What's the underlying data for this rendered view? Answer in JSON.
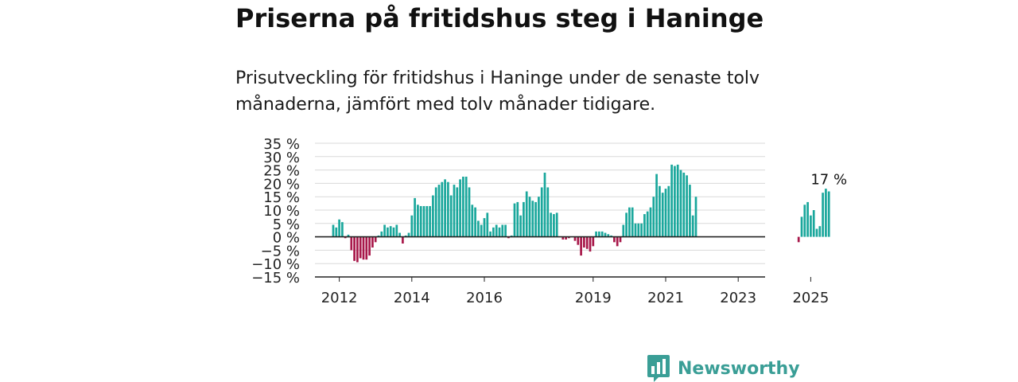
{
  "title": "Priserna på fritidshus steg i Haninge",
  "subtitle": "Prisutveckling för fritidshus i Haninge under de senaste tolv månaderna, jämfört med tolv månader tidigare.",
  "brand": {
    "name": "Newsworthy",
    "logo_icon": "newsworthy-bar-chart-logo"
  },
  "colors": {
    "positive": "#1aa79c",
    "negative": "#a8184a",
    "grid": "#d9d9d9",
    "axis": "#222222",
    "brand": "#3a9e96"
  },
  "chart_data": {
    "type": "bar",
    "x_unit": "month",
    "start_month": "2011-11",
    "values": [
      4.5,
      3.5,
      6.5,
      5.5,
      -0.5,
      0.8,
      -5,
      -9,
      -9.5,
      -8,
      -8.5,
      -8.5,
      -7,
      -4,
      -2,
      0.5,
      2,
      4.5,
      3.5,
      4,
      3.5,
      4.5,
      1.5,
      -2.5,
      0.5,
      1.5,
      8,
      14.5,
      12,
      11.5,
      11.5,
      11.5,
      11.5,
      15.5,
      18.5,
      19.5,
      20.5,
      21.5,
      20.5,
      15.5,
      19.5,
      18.5,
      21.5,
      22.5,
      22.5,
      18.5,
      12,
      11,
      6,
      4.5,
      7,
      9,
      2,
      3.5,
      4.5,
      3.5,
      4.5,
      4.5,
      -0.5,
      0.5,
      12.5,
      13,
      8,
      13,
      17,
      15,
      13.5,
      13,
      15,
      18.5,
      24,
      18.5,
      9,
      8.5,
      9,
      null,
      -1,
      -1,
      -0.5,
      null,
      -1.5,
      -3,
      -7,
      -4,
      -4.5,
      -5.5,
      -3.5,
      2,
      2,
      2,
      1.5,
      1,
      0.5,
      -2,
      -3.5,
      -2,
      4.5,
      9,
      11,
      11,
      5,
      5,
      5,
      8.5,
      9.5,
      11,
      15,
      23.5,
      19,
      16.5,
      18,
      19,
      27,
      26.5,
      27,
      25,
      24,
      23,
      19.5,
      8,
      15,
      null,
      null,
      null,
      null,
      null,
      null,
      null,
      null,
      null,
      null,
      null,
      null,
      null,
      null,
      null,
      null,
      null,
      null,
      null,
      null,
      null,
      null,
      null,
      null,
      null,
      null,
      null,
      null,
      null,
      null,
      null,
      null,
      null,
      -2,
      7.5,
      12,
      13,
      8,
      10,
      3,
      4,
      16.5,
      18,
      17
    ],
    "x_ticks": [
      "2012",
      "2014",
      "2016",
      "2019",
      "2021",
      "2023",
      "2025"
    ],
    "y_ticks": [
      "35 %",
      "30 %",
      "25 %",
      "20 %",
      "15 %",
      "10 %",
      "5 %",
      "0 %",
      "−5 %",
      "−10 %",
      "−15 %"
    ],
    "ylim": [
      -15,
      35
    ],
    "annotation": {
      "text": "17 %",
      "at_index": "last"
    },
    "grid": true,
    "legend": "none"
  }
}
